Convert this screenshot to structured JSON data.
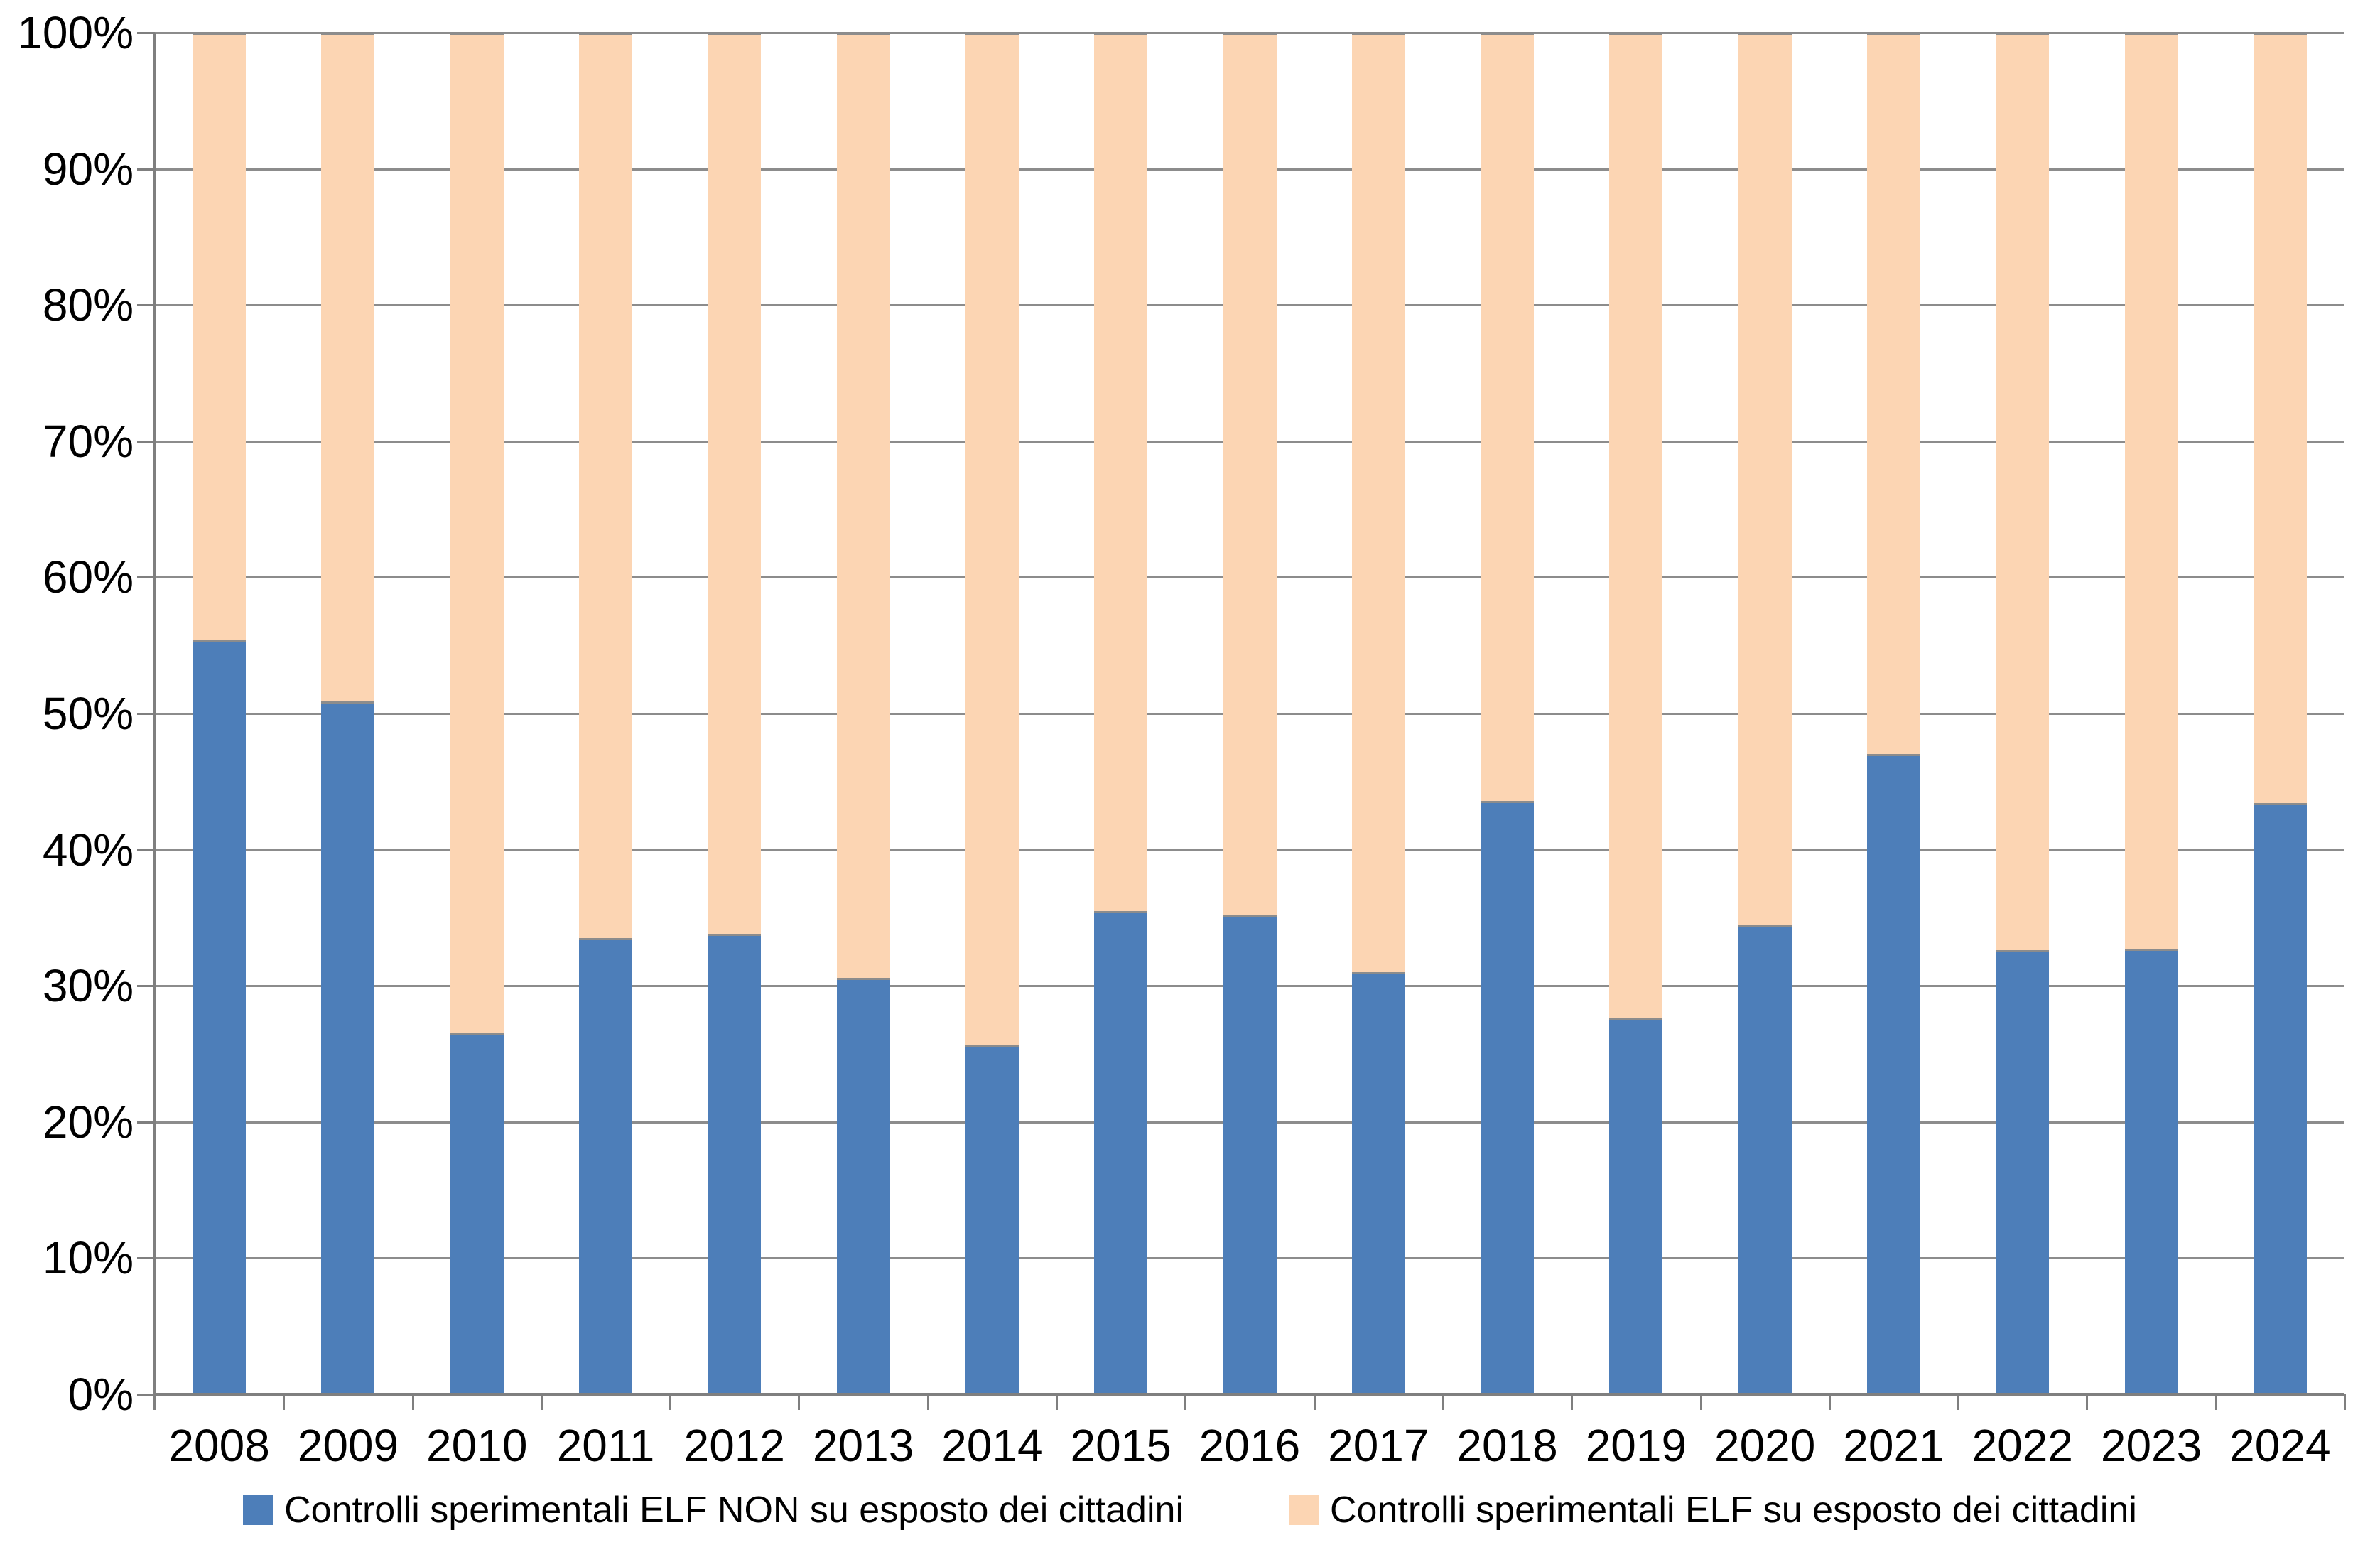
{
  "chart_data": {
    "type": "bar",
    "subtype": "stacked-100-percent",
    "title": "",
    "categories": [
      "2008",
      "2009",
      "2010",
      "2011",
      "2012",
      "2013",
      "2014",
      "2015",
      "2016",
      "2017",
      "2018",
      "2019",
      "2020",
      "2021",
      "2022",
      "2023",
      "2024"
    ],
    "series": [
      {
        "name": "Controlli sperimentali ELF NON su esposto dei cittadini",
        "color": "#4D7EB9",
        "values": [
          55.4,
          50.9,
          26.5,
          33.5,
          33.8,
          30.6,
          25.7,
          35.5,
          35.2,
          31.0,
          43.6,
          27.6,
          34.5,
          47.0,
          32.6,
          32.7,
          43.4
        ]
      },
      {
        "name": "Controlli sperimentali ELF su esposto dei cittadini",
        "color": "#FCD5B3",
        "values": [
          44.6,
          49.1,
          73.5,
          66.5,
          66.2,
          69.4,
          74.3,
          64.5,
          64.8,
          69.0,
          56.4,
          72.4,
          65.5,
          53.0,
          67.4,
          67.3,
          56.6
        ]
      }
    ],
    "y_ticks": [
      "100%",
      "90%",
      "80%",
      "70%",
      "60%",
      "50%",
      "40%",
      "30%",
      "20%",
      "10%",
      "0%"
    ],
    "ylim": [
      0,
      100
    ],
    "grid": "horizontal",
    "gridline_color": "#8C8C8C",
    "axis_color": "#7F7F7F",
    "legend_position": "bottom"
  }
}
